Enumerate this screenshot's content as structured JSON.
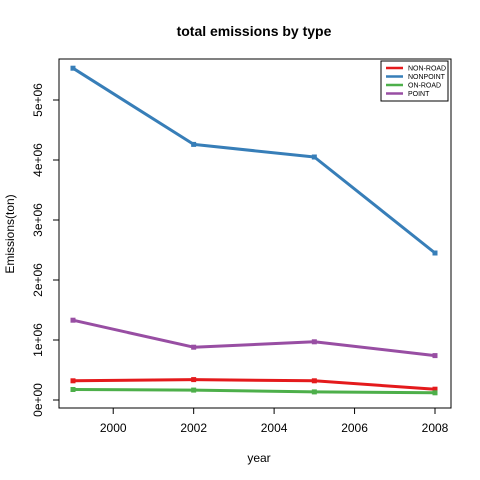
{
  "chart_data": {
    "type": "line",
    "title": "total emissions by type",
    "xlabel": "year",
    "ylabel": "Emissions(ton)",
    "x": [
      1999,
      2002,
      2005,
      2008
    ],
    "xlim": [
      1999,
      2008
    ],
    "ylim": [
      0,
      5500000
    ],
    "xticks": [
      2000,
      2002,
      2004,
      2006,
      2008
    ],
    "xtick_labels": [
      "2000",
      "2002",
      "2004",
      "2006",
      "2008"
    ],
    "yticks": [
      0,
      1000000,
      2000000,
      3000000,
      4000000,
      5000000
    ],
    "ytick_labels": [
      "0e+00",
      "1e+06",
      "2e+06",
      "3e+06",
      "4e+06",
      "5e+06"
    ],
    "grid": false,
    "legend_position": "top-right",
    "series": [
      {
        "name": "NON-ROAD",
        "color": "#e41a1c",
        "values": [
          320000,
          340000,
          320000,
          180000
        ]
      },
      {
        "name": "NONPOINT",
        "color": "#377eb8",
        "values": [
          5530000,
          4260000,
          4050000,
          2450000
        ]
      },
      {
        "name": "ON-ROAD",
        "color": "#4daf4a",
        "values": [
          175000,
          165000,
          135000,
          120000
        ]
      },
      {
        "name": "POINT",
        "color": "#984ea3",
        "values": [
          1330000,
          880000,
          970000,
          740000
        ]
      }
    ]
  }
}
